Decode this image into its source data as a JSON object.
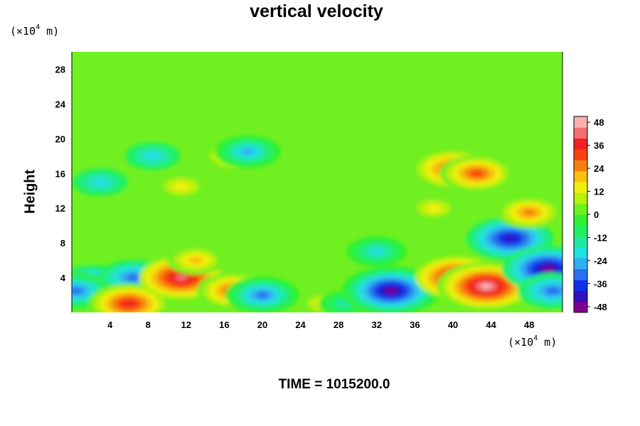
{
  "chart_data": {
    "type": "heatmap",
    "title": "vertical velocity",
    "ylabel": "Height",
    "xlabel": "",
    "x_unit": {
      "prefix": "(×10",
      "exp": "4",
      "suffix": " m)"
    },
    "y_unit": {
      "prefix": "(×10",
      "exp": "4",
      "suffix": " m)"
    },
    "xlim": [
      0,
      51.5
    ],
    "ylim": [
      0,
      30
    ],
    "x_ticks": [
      4,
      8,
      12,
      16,
      20,
      24,
      28,
      32,
      36,
      40,
      44,
      48
    ],
    "y_ticks": [
      4,
      8,
      12,
      16,
      20,
      24,
      28
    ],
    "colorbar": {
      "range": [
        -51,
        51
      ],
      "ticks": [
        48,
        36,
        24,
        12,
        0,
        -12,
        -24,
        -36,
        -48
      ],
      "colors": [
        "#800090",
        "#3010c0",
        "#1030e8",
        "#2870f0",
        "#30b0f0",
        "#20e0e0",
        "#20e8a0",
        "#20f060",
        "#30f030",
        "#70f020",
        "#b8f010",
        "#f0f010",
        "#f8c010",
        "#f88010",
        "#f84010",
        "#f02020",
        "#f07070",
        "#f8b0b0"
      ]
    },
    "background_value": 0,
    "features": [
      {
        "x": 2.5,
        "y": 3.0,
        "value": -40
      },
      {
        "x": 0.5,
        "y": 2.5,
        "value": -32
      },
      {
        "x": 6.5,
        "y": 4.0,
        "value": -30
      },
      {
        "x": 6.0,
        "y": 1.0,
        "value": 38
      },
      {
        "x": 11.5,
        "y": 4.0,
        "value": 40
      },
      {
        "x": 13.0,
        "y": 6.0,
        "value": 20
      },
      {
        "x": 17.0,
        "y": 2.5,
        "value": 32
      },
      {
        "x": 20.0,
        "y": 2.0,
        "value": -32
      },
      {
        "x": 26.5,
        "y": 1.0,
        "value": 14
      },
      {
        "x": 28.5,
        "y": 1.0,
        "value": -14
      },
      {
        "x": 33.5,
        "y": 2.5,
        "value": -50
      },
      {
        "x": 32.0,
        "y": 7.0,
        "value": -22
      },
      {
        "x": 40.5,
        "y": 4.0,
        "value": 40
      },
      {
        "x": 43.5,
        "y": 3.0,
        "value": 50
      },
      {
        "x": 46.0,
        "y": 8.5,
        "value": -42
      },
      {
        "x": 50.0,
        "y": 5.0,
        "value": -46
      },
      {
        "x": 50.5,
        "y": 2.5,
        "value": -30
      },
      {
        "x": 40.0,
        "y": 16.5,
        "value": 30
      },
      {
        "x": 42.5,
        "y": 16.0,
        "value": 32
      },
      {
        "x": 48.0,
        "y": 11.5,
        "value": 26
      },
      {
        "x": 11.5,
        "y": 14.5,
        "value": 16
      },
      {
        "x": 17.0,
        "y": 18.0,
        "value": 12
      },
      {
        "x": 18.5,
        "y": 18.5,
        "value": -26
      },
      {
        "x": 8.5,
        "y": 18.0,
        "value": -18
      },
      {
        "x": 3.0,
        "y": 15.0,
        "value": -18
      },
      {
        "x": 38.0,
        "y": 12.0,
        "value": 14
      }
    ]
  },
  "footer": {
    "time_label": "TIME = 1015200.0"
  }
}
